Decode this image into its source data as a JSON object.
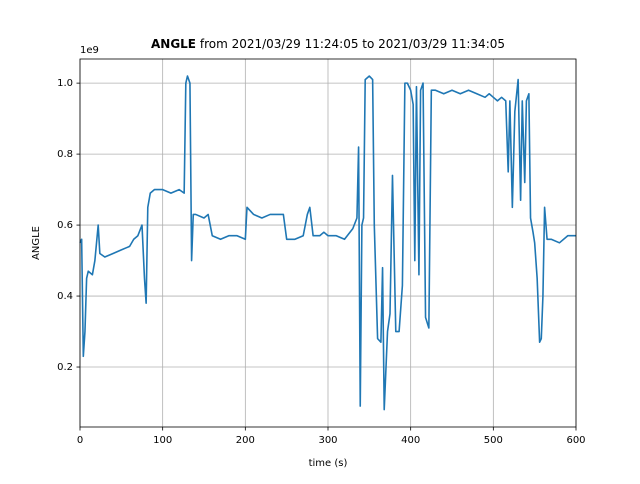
{
  "chart_data": {
    "type": "line",
    "title_bold": "ANGLE",
    "title": "from 2021/03/29 11:24:05 to 2021/03/29 11:34:05",
    "x_label": "time (s)",
    "y_label": "ANGLE",
    "y_offset_label": "1e9",
    "x": [
      0,
      2,
      4,
      6,
      8,
      10,
      15,
      18,
      20,
      22,
      24,
      30,
      40,
      50,
      60,
      65,
      70,
      75,
      78,
      80,
      82,
      85,
      90,
      100,
      110,
      120,
      126,
      128,
      130,
      133,
      135,
      137,
      140,
      150,
      155,
      160,
      170,
      180,
      190,
      200,
      202,
      210,
      220,
      230,
      240,
      246,
      250,
      260,
      270,
      275,
      278,
      282,
      290,
      295,
      300,
      310,
      320,
      330,
      335,
      337,
      339,
      341,
      343,
      345,
      350,
      354,
      356,
      360,
      364,
      366,
      368,
      372,
      375,
      378,
      380,
      382,
      386,
      390,
      393,
      396,
      400,
      403,
      405,
      407,
      410,
      412,
      415,
      418,
      422,
      425,
      430,
      440,
      450,
      460,
      470,
      480,
      490,
      495,
      500,
      505,
      510,
      515,
      518,
      520,
      523,
      526,
      530,
      533,
      535,
      538,
      540,
      543,
      545,
      548,
      550,
      553,
      556,
      558,
      560,
      562,
      565,
      570,
      580,
      590,
      600
    ],
    "series": [
      {
        "name": "ANGLE",
        "color": "#1f77b4",
        "values": [
          0.55,
          0.56,
          0.23,
          0.3,
          0.45,
          0.47,
          0.46,
          0.5,
          0.55,
          0.6,
          0.52,
          0.51,
          0.52,
          0.53,
          0.54,
          0.56,
          0.57,
          0.6,
          0.45,
          0.38,
          0.65,
          0.69,
          0.7,
          0.7,
          0.69,
          0.7,
          0.69,
          1.0,
          1.02,
          1.0,
          0.5,
          0.63,
          0.63,
          0.62,
          0.63,
          0.57,
          0.56,
          0.57,
          0.57,
          0.56,
          0.65,
          0.63,
          0.62,
          0.63,
          0.63,
          0.63,
          0.56,
          0.56,
          0.57,
          0.63,
          0.65,
          0.57,
          0.57,
          0.58,
          0.57,
          0.57,
          0.56,
          0.59,
          0.62,
          0.82,
          0.09,
          0.6,
          0.62,
          1.01,
          1.02,
          1.01,
          0.6,
          0.28,
          0.27,
          0.48,
          0.08,
          0.3,
          0.35,
          0.74,
          0.52,
          0.3,
          0.3,
          0.43,
          1.0,
          1.0,
          0.98,
          0.94,
          0.5,
          0.99,
          0.46,
          0.98,
          1.0,
          0.34,
          0.31,
          0.98,
          0.98,
          0.97,
          0.98,
          0.97,
          0.98,
          0.97,
          0.96,
          0.97,
          0.96,
          0.95,
          0.96,
          0.95,
          0.75,
          0.95,
          0.65,
          0.92,
          1.01,
          0.67,
          0.95,
          0.72,
          0.95,
          0.97,
          0.62,
          0.58,
          0.55,
          0.45,
          0.27,
          0.28,
          0.4,
          0.65,
          0.56,
          0.56,
          0.55,
          0.57,
          0.57
        ]
      }
    ],
    "xlim": [
      0,
      600
    ],
    "xticks": [
      0,
      100,
      200,
      300,
      400,
      500,
      600
    ],
    "ylim": [
      0.031,
      1.068
    ],
    "yticks": [
      0.2,
      0.4,
      0.6,
      0.8,
      {
        "value": 1,
        "label": "1.0"
      }
    ],
    "grid": true
  }
}
